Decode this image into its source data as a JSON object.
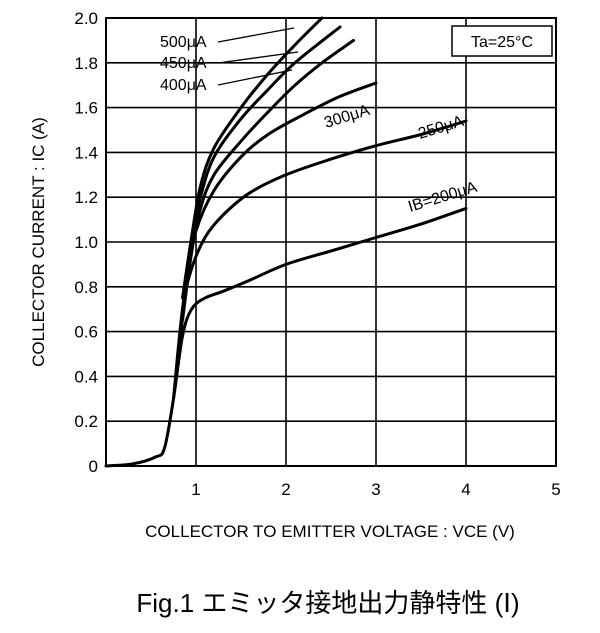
{
  "chart_data": {
    "type": "line",
    "title": "Fig.1 エミッタ接地出力静特性 (Ⅰ)",
    "xlabel": "COLLECTOR TO EMITTER VOLTAGE : VCE (V)",
    "ylabel": "COLLECTOR CURRENT : IC (A)",
    "xlim": [
      0,
      5
    ],
    "ylim": [
      0,
      2.0
    ],
    "x_ticks": [
      "1",
      "2",
      "3",
      "4",
      "5"
    ],
    "y_ticks": [
      "0",
      "0.2",
      "0.4",
      "0.6",
      "0.8",
      "1.0",
      "1.2",
      "1.4",
      "1.6",
      "1.8",
      "2.0"
    ],
    "grid": true,
    "condition": "Ta=25°C",
    "series": [
      {
        "name": "IB=200μA",
        "label": "IB=200μA",
        "points": [
          [
            0,
            0
          ],
          [
            0.3,
            0.01
          ],
          [
            0.55,
            0.04
          ],
          [
            0.65,
            0.08
          ],
          [
            0.75,
            0.3
          ],
          [
            0.85,
            0.58
          ],
          [
            0.95,
            0.7
          ],
          [
            1.1,
            0.75
          ],
          [
            1.3,
            0.78
          ],
          [
            1.6,
            0.83
          ],
          [
            2,
            0.9
          ],
          [
            2.5,
            0.96
          ],
          [
            3,
            1.02
          ],
          [
            3.5,
            1.08
          ],
          [
            4,
            1.15
          ]
        ]
      },
      {
        "name": "250μA",
        "label": "250μA",
        "points": [
          [
            0.75,
            0.3
          ],
          [
            0.85,
            0.7
          ],
          [
            0.95,
            0.88
          ],
          [
            1.1,
            1.02
          ],
          [
            1.3,
            1.12
          ],
          [
            1.6,
            1.22
          ],
          [
            2,
            1.3
          ],
          [
            2.5,
            1.37
          ],
          [
            3,
            1.43
          ],
          [
            3.5,
            1.48
          ],
          [
            4,
            1.54
          ]
        ]
      },
      {
        "name": "300μA",
        "label": "300μA",
        "points": [
          [
            0.8,
            0.45
          ],
          [
            0.9,
            0.85
          ],
          [
            1.0,
            1.05
          ],
          [
            1.2,
            1.23
          ],
          [
            1.5,
            1.38
          ],
          [
            1.8,
            1.48
          ],
          [
            2.2,
            1.57
          ],
          [
            2.6,
            1.65
          ],
          [
            3,
            1.71
          ]
        ]
      },
      {
        "name": "400μA",
        "label": "400μA",
        "points": [
          [
            0.85,
            0.65
          ],
          [
            0.95,
            0.95
          ],
          [
            1.05,
            1.15
          ],
          [
            1.2,
            1.3
          ],
          [
            1.5,
            1.45
          ],
          [
            1.8,
            1.58
          ],
          [
            2.1,
            1.7
          ],
          [
            2.4,
            1.8
          ],
          [
            2.75,
            1.9
          ]
        ]
      },
      {
        "name": "450μA",
        "label": "450μA",
        "points": [
          [
            0.85,
            0.7
          ],
          [
            0.95,
            1.0
          ],
          [
            1.05,
            1.2
          ],
          [
            1.2,
            1.38
          ],
          [
            1.5,
            1.55
          ],
          [
            1.8,
            1.68
          ],
          [
            2.1,
            1.8
          ],
          [
            2.6,
            1.96
          ]
        ]
      },
      {
        "name": "500μA",
        "label": "500μA",
        "points": [
          [
            0.85,
            0.75
          ],
          [
            0.95,
            1.02
          ],
          [
            1.05,
            1.25
          ],
          [
            1.2,
            1.42
          ],
          [
            1.5,
            1.6
          ],
          [
            1.8,
            1.75
          ],
          [
            2.1,
            1.88
          ],
          [
            2.4,
            2.0
          ]
        ]
      }
    ]
  }
}
